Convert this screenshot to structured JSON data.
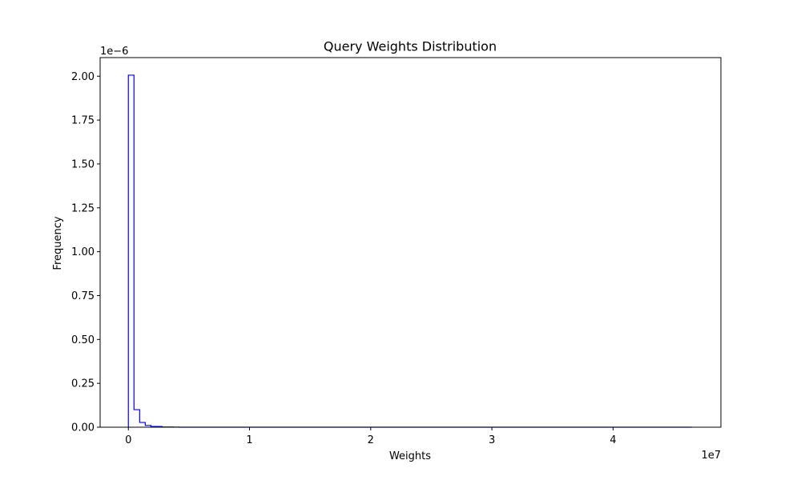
{
  "chart_data": {
    "type": "histogram",
    "title": "Query Weights Distribution",
    "xlabel": "Weights",
    "ylabel": "Frequency",
    "x_offset_label": "1e7",
    "y_offset_label": "1e−6",
    "xlim": [
      -2330000,
      48900000
    ],
    "ylim": [
      0,
      2.106
    ],
    "x_ticks": [
      0,
      1,
      2,
      3,
      4
    ],
    "x_tick_labels": [
      "0",
      "1",
      "2",
      "3",
      "4"
    ],
    "y_ticks": [
      0.0,
      0.25,
      0.5,
      0.75,
      1.0,
      1.25,
      1.5,
      1.75,
      2.0
    ],
    "y_tick_labels": [
      "0.00",
      "0.25",
      "0.50",
      "0.75",
      "1.00",
      "1.25",
      "1.50",
      "1.75",
      "2.00"
    ],
    "bin_start": 0,
    "bin_width": 465000,
    "bin_values": [
      2.006,
      0.1,
      0.027,
      0.01,
      0.004,
      0.004,
      0.001,
      0.001,
      0.0005
    ],
    "bin_count": 100,
    "histtype": "step",
    "grid": false,
    "colors": {
      "line": "#0000ff",
      "axes": "#000000",
      "background": "#ffffff"
    }
  }
}
